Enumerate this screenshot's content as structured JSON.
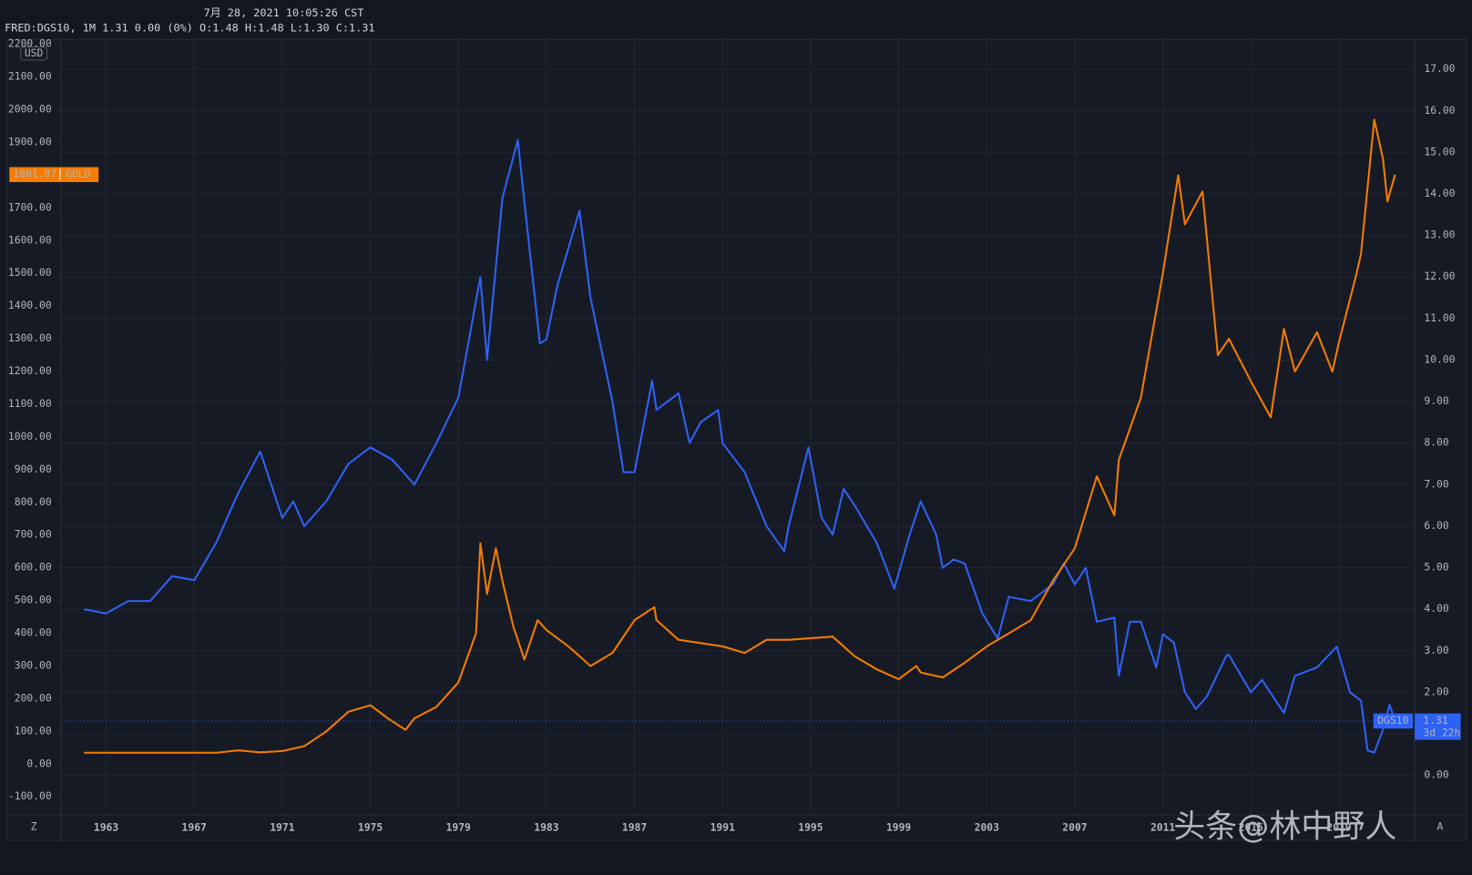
{
  "chart_data": {
    "type": "line",
    "date_time": "7月 28, 2021 10:05:26 CST",
    "legend_text": "FRED:DGS10, 1M 1.31 0.00 (0%) O:1.48 H:1.48 L:1.30 C:1.31",
    "y_unit": "USD",
    "watermark": "头条@林中野人",
    "buttons": [
      "Z",
      "A"
    ],
    "countdown": "3d 22h",
    "grid": true,
    "xlim": [
      1960.95,
      2022.44
    ],
    "xticks": [
      1963,
      1967,
      1971,
      1975,
      1979,
      1983,
      1987,
      1991,
      1995,
      1999,
      2003,
      2007,
      2011,
      2015,
      2019
    ],
    "ylim": [
      -155,
      2215
    ],
    "yticks": [
      {
        "value": -100,
        "label": "-100.00"
      },
      {
        "value": 0,
        "label": "0.00"
      },
      {
        "value": 100,
        "label": "100.00"
      },
      {
        "value": 200,
        "label": "200.00"
      },
      {
        "value": 300,
        "label": "300.00"
      },
      {
        "value": 400,
        "label": "400.00"
      },
      {
        "value": 500,
        "label": "500.00"
      },
      {
        "value": 600,
        "label": "600.00"
      },
      {
        "value": 700,
        "label": "700.00"
      },
      {
        "value": 800,
        "label": "800.00"
      },
      {
        "value": 900,
        "label": "900.00"
      },
      {
        "value": 1000,
        "label": "1000.00"
      },
      {
        "value": 1100,
        "label": "1100.00"
      },
      {
        "value": 1200,
        "label": "1200.00"
      },
      {
        "value": 1300,
        "label": "1300.00"
      },
      {
        "value": 1400,
        "label": "1400.00"
      },
      {
        "value": 1500,
        "label": "1500.00"
      },
      {
        "value": 1600,
        "label": "1600.00"
      },
      {
        "value": 1700,
        "label": "1700.00"
      },
      {
        "value": 1800,
        "label": "1800.00"
      },
      {
        "value": 1900,
        "label": "1900.00"
      },
      {
        "value": 2000,
        "label": "2000.00"
      },
      {
        "value": 2100,
        "label": "2100.00"
      },
      {
        "value": 2200,
        "label": "2200.00"
      }
    ],
    "y2lim": [
      -0.95,
      17.72
    ],
    "y2ticks": [
      {
        "value": 0,
        "label": "0.00"
      },
      {
        "value": 1,
        "label": "1.00"
      },
      {
        "value": 2,
        "label": "2.00"
      },
      {
        "value": 3,
        "label": "3.00"
      },
      {
        "value": 4,
        "label": "4.00"
      },
      {
        "value": 5,
        "label": "5.00"
      },
      {
        "value": 6,
        "label": "6.00"
      },
      {
        "value": 7,
        "label": "7.00"
      },
      {
        "value": 8,
        "label": "8.00"
      },
      {
        "value": 9,
        "label": "9.00"
      },
      {
        "value": 10,
        "label": "10.00"
      },
      {
        "value": 11,
        "label": "11.00"
      },
      {
        "value": 12,
        "label": "12.00"
      },
      {
        "value": 13,
        "label": "13.00"
      },
      {
        "value": 14,
        "label": "14.00"
      },
      {
        "value": 15,
        "label": "15.00"
      },
      {
        "value": 16,
        "label": "16.00"
      },
      {
        "value": 17,
        "label": "17.00"
      }
    ],
    "series": [
      {
        "name": "DGS10",
        "color": "#2e62f5",
        "axis": "y2",
        "x": [
          1962,
          1963,
          1964,
          1965,
          1966,
          1967,
          1968,
          1969,
          1970,
          1971,
          1971.5,
          1972,
          1973,
          1974,
          1975,
          1976,
          1977,
          1978,
          1979,
          1980,
          1980.3,
          1981,
          1981.7,
          1982,
          1982.7,
          1983,
          1983.5,
          1984.5,
          1985,
          1986,
          1986.5,
          1987,
          1987.8,
          1988,
          1989,
          1989.5,
          1990,
          1990.8,
          1991,
          1992,
          1993,
          1993.8,
          1994,
          1994.9,
          1995.5,
          1996,
          1996.5,
          1997,
          1998,
          1998.8,
          1999.5,
          2000,
          2000.7,
          2001,
          2001.5,
          2002,
          2002.8,
          2003.5,
          2004,
          2005,
          2006,
          2006.5,
          2007,
          2007.5,
          2008,
          2008.8,
          2009,
          2009.5,
          2010,
          2010.7,
          2011,
          2011.5,
          2012,
          2012.5,
          2013,
          2013.9,
          2014,
          2015,
          2015.5,
          2016.5,
          2017,
          2018,
          2018.9,
          2019.5,
          2020,
          2020.3,
          2020.6,
          2021,
          2021.3,
          2021.55
        ],
        "values": [
          4.0,
          3.9,
          4.2,
          4.2,
          4.8,
          4.7,
          5.6,
          6.8,
          7.8,
          6.2,
          6.6,
          6.0,
          6.6,
          7.5,
          7.9,
          7.6,
          7.0,
          8.0,
          9.1,
          12.0,
          10.0,
          13.9,
          15.3,
          13.8,
          10.4,
          10.5,
          11.8,
          13.6,
          11.5,
          9.0,
          7.3,
          7.3,
          9.5,
          8.8,
          9.2,
          8.0,
          8.5,
          8.8,
          8.0,
          7.3,
          6.0,
          5.4,
          6.0,
          7.9,
          6.2,
          5.8,
          6.9,
          6.5,
          5.6,
          4.5,
          5.8,
          6.6,
          5.8,
          5.0,
          5.2,
          5.1,
          3.9,
          3.3,
          4.3,
          4.2,
          4.6,
          5.1,
          4.6,
          5.0,
          3.7,
          3.8,
          2.4,
          3.7,
          3.7,
          2.6,
          3.4,
          3.2,
          2.0,
          1.6,
          1.9,
          2.9,
          2.9,
          2.0,
          2.3,
          1.5,
          2.4,
          2.6,
          3.1,
          2.0,
          1.8,
          0.6,
          0.55,
          1.1,
          1.7,
          1.31
        ]
      },
      {
        "name": "GOLD",
        "color": "#f57c00",
        "x": [
          1962,
          1968,
          1969,
          1970,
          1971,
          1972,
          1973,
          1974,
          1975,
          1975.8,
          1976.6,
          1977,
          1978,
          1979,
          1979.8,
          1980,
          1980.3,
          1980.7,
          1981,
          1981.5,
          1982,
          1982.6,
          1983,
          1984,
          1985,
          1986,
          1987,
          1987.9,
          1988,
          1989,
          1990,
          1991,
          1992,
          1993,
          1994,
          1995,
          1996,
          1997,
          1998,
          1999,
          1999.8,
          2000,
          2001,
          2002,
          2003,
          2004,
          2005,
          2006,
          2007,
          2008,
          2008.8,
          2009,
          2010,
          2011,
          2011.7,
          2012,
          2012.8,
          2013.5,
          2014,
          2015,
          2015.9,
          2016.5,
          2017,
          2018,
          2018.7,
          2019,
          2019.8,
          2020,
          2020.6,
          2021,
          2021.2,
          2021.55
        ],
        "values": [
          35,
          35,
          42,
          36,
          40,
          55,
          100,
          160,
          180,
          140,
          105,
          140,
          175,
          250,
          400,
          675,
          520,
          660,
          560,
          420,
          320,
          440,
          410,
          360,
          300,
          340,
          440,
          480,
          440,
          380,
          370,
          360,
          340,
          380,
          380,
          385,
          390,
          330,
          290,
          260,
          300,
          280,
          265,
          310,
          360,
          400,
          440,
          560,
          660,
          880,
          760,
          930,
          1120,
          1500,
          1800,
          1650,
          1750,
          1250,
          1300,
          1170,
          1060,
          1330,
          1200,
          1320,
          1200,
          1290,
          1500,
          1560,
          1970,
          1850,
          1720,
          1801.87
        ]
      }
    ]
  }
}
